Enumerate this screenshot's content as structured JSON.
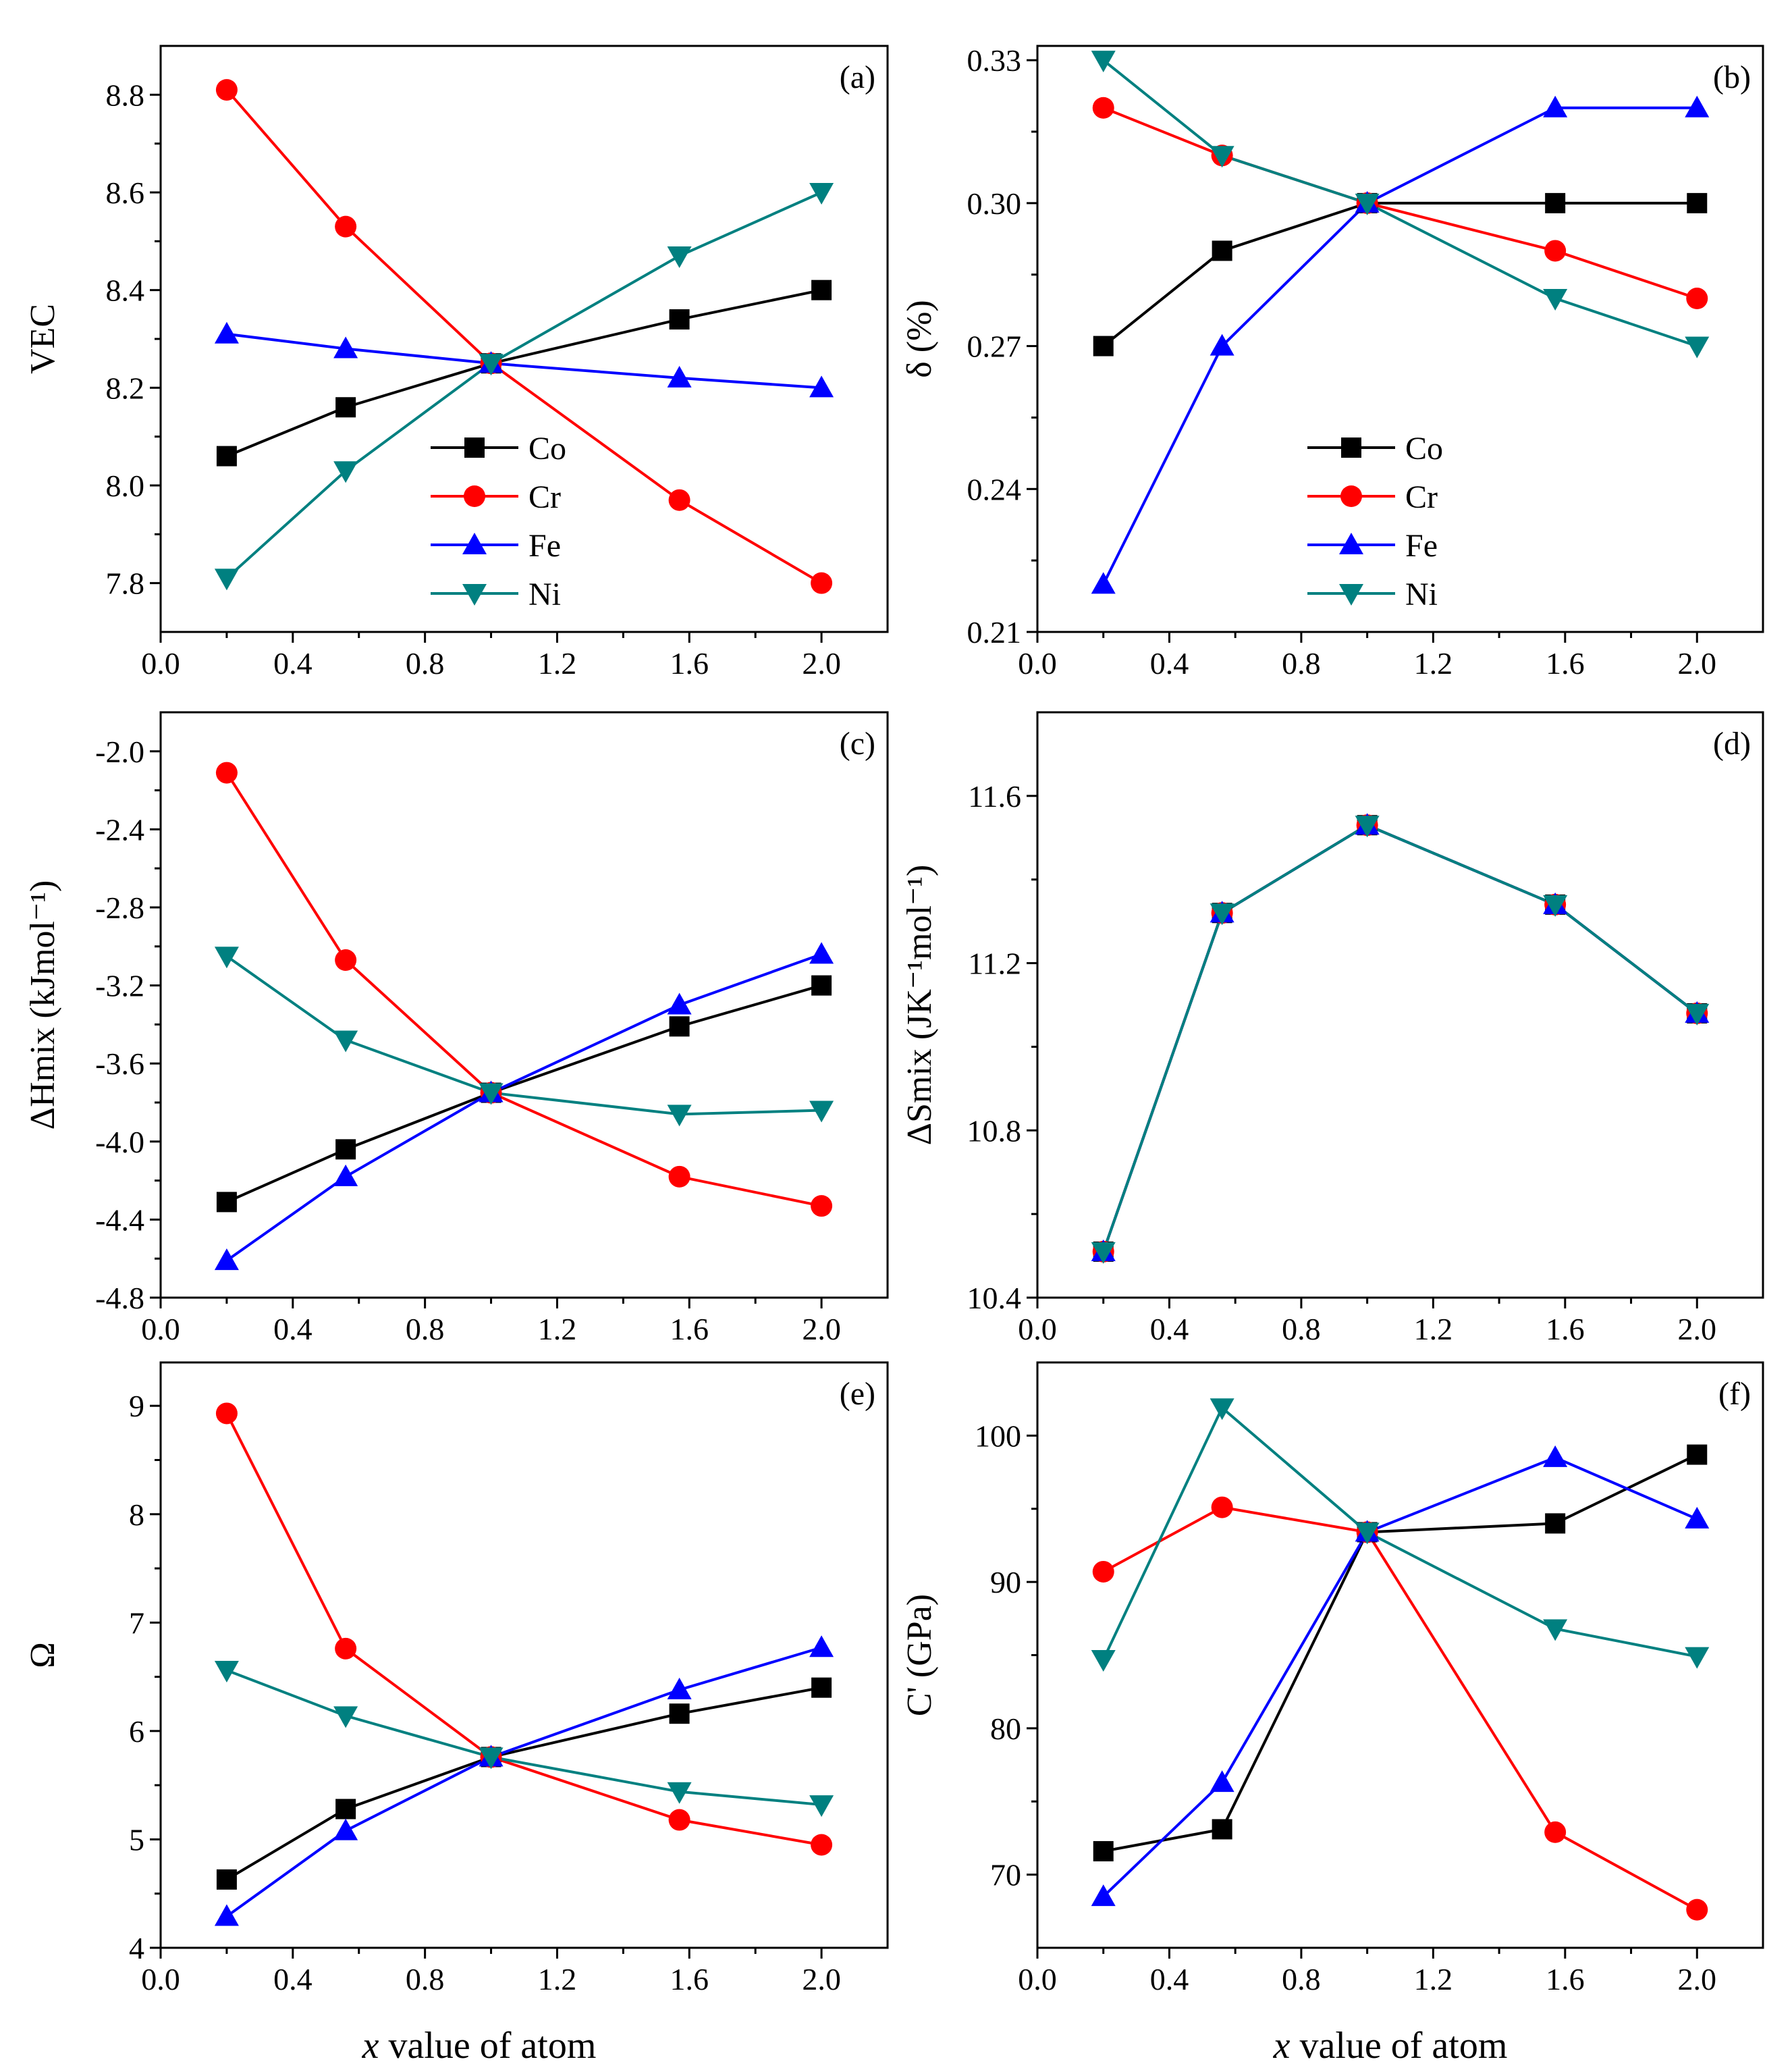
{
  "figure": {
    "xlabel_italic": "x",
    "xlabel_rest": " value of atom"
  },
  "colors": {
    "Co": "#000000",
    "Cr": "#ff0000",
    "Fe": "#0000ff",
    "Ni": "#008080"
  },
  "markers": {
    "Co": "square",
    "Cr": "circle",
    "Fe": "triangle-up",
    "Ni": "triangle-down"
  },
  "chart_data": [
    {
      "type": "line",
      "panel": "(a)",
      "ylabel": "VEC",
      "x": [
        0.2,
        0.56,
        1.0,
        1.57,
        2.0
      ],
      "xlim": [
        0.0,
        2.2
      ],
      "xticks": [
        "0.0",
        "0.4",
        "0.8",
        "1.2",
        "1.6",
        "2.0"
      ],
      "ylim": [
        7.7,
        8.9
      ],
      "yticks": [
        "7.8",
        "8.0",
        "8.2",
        "8.4",
        "8.6",
        "8.8"
      ],
      "legend": "lower-middle",
      "series": [
        {
          "name": "Co",
          "values": [
            8.06,
            8.16,
            8.25,
            8.34,
            8.4
          ]
        },
        {
          "name": "Cr",
          "values": [
            8.81,
            8.53,
            8.25,
            7.97,
            7.8
          ]
        },
        {
          "name": "Fe",
          "values": [
            8.31,
            8.28,
            8.25,
            8.22,
            8.2
          ]
        },
        {
          "name": "Ni",
          "values": [
            7.81,
            8.03,
            8.25,
            8.47,
            8.6
          ]
        }
      ]
    },
    {
      "type": "line",
      "panel": "(b)",
      "ylabel": "δ (%)",
      "x": [
        0.2,
        0.56,
        1.0,
        1.57,
        2.0
      ],
      "xlim": [
        0.0,
        2.2
      ],
      "xticks": [
        "0.0",
        "0.4",
        "0.8",
        "1.2",
        "1.6",
        "2.0"
      ],
      "ylim": [
        0.21,
        0.333
      ],
      "yticks": [
        "0.21",
        "0.24",
        "0.27",
        "0.30",
        "0.33"
      ],
      "legend": "lower-middle",
      "series": [
        {
          "name": "Co",
          "values": [
            0.27,
            0.29,
            0.3,
            0.3,
            0.3
          ]
        },
        {
          "name": "Cr",
          "values": [
            0.32,
            0.31,
            0.3,
            0.29,
            0.28
          ]
        },
        {
          "name": "Fe",
          "values": [
            0.22,
            0.27,
            0.3,
            0.32,
            0.32
          ]
        },
        {
          "name": "Ni",
          "values": [
            0.33,
            0.31,
            0.3,
            0.28,
            0.27
          ]
        }
      ]
    },
    {
      "type": "line",
      "panel": "(c)",
      "ylabel": "ΔHmix (kJmol⁻¹)",
      "x": [
        0.2,
        0.56,
        1.0,
        1.57,
        2.0
      ],
      "xlim": [
        0.0,
        2.2
      ],
      "xticks": [
        "0.0",
        "0.4",
        "0.8",
        "1.2",
        "1.6",
        "2.0"
      ],
      "ylim": [
        -4.8,
        -1.8
      ],
      "yticks": [
        "-4.8",
        "-4.4",
        "-4.0",
        "-3.6",
        "-3.2",
        "-2.8",
        "-2.4",
        "-2.0"
      ],
      "series": [
        {
          "name": "Co",
          "values": [
            -4.31,
            -4.04,
            -3.75,
            -3.41,
            -3.2
          ]
        },
        {
          "name": "Cr",
          "values": [
            -2.11,
            -3.07,
            -3.75,
            -4.18,
            -4.33
          ]
        },
        {
          "name": "Fe",
          "values": [
            -4.61,
            -4.18,
            -3.75,
            -3.3,
            -3.04
          ]
        },
        {
          "name": "Ni",
          "values": [
            -3.05,
            -3.48,
            -3.75,
            -3.86,
            -3.84
          ]
        }
      ]
    },
    {
      "type": "line",
      "panel": "(d)",
      "ylabel": "ΔSmix (JK⁻¹mol⁻¹)",
      "x": [
        0.2,
        0.56,
        1.0,
        1.57,
        2.0
      ],
      "xlim": [
        0.0,
        2.2
      ],
      "xticks": [
        "0.0",
        "0.4",
        "0.8",
        "1.2",
        "1.6",
        "2.0"
      ],
      "ylim": [
        10.4,
        11.8
      ],
      "yticks": [
        "10.4",
        "10.8",
        "11.2",
        "11.6"
      ],
      "series": [
        {
          "name": "Co",
          "values": [
            10.51,
            11.32,
            11.53,
            11.34,
            11.08
          ]
        },
        {
          "name": "Cr",
          "values": [
            10.51,
            11.32,
            11.53,
            11.34,
            11.08
          ]
        },
        {
          "name": "Fe",
          "values": [
            10.51,
            11.32,
            11.53,
            11.34,
            11.08
          ]
        },
        {
          "name": "Ni",
          "values": [
            10.51,
            11.32,
            11.53,
            11.34,
            11.08
          ]
        }
      ]
    },
    {
      "type": "line",
      "panel": "(e)",
      "ylabel": "Ω",
      "x": [
        0.2,
        0.56,
        1.0,
        1.57,
        2.0
      ],
      "xlim": [
        0.0,
        2.2
      ],
      "xticks": [
        "0.0",
        "0.4",
        "0.8",
        "1.2",
        "1.6",
        "2.0"
      ],
      "ylim": [
        4.0,
        9.4
      ],
      "yticks": [
        "4",
        "5",
        "6",
        "7",
        "8",
        "9"
      ],
      "series": [
        {
          "name": "Co",
          "values": [
            4.63,
            5.28,
            5.76,
            6.16,
            6.4
          ]
        },
        {
          "name": "Cr",
          "values": [
            8.93,
            6.76,
            5.76,
            5.18,
            4.95
          ]
        },
        {
          "name": "Fe",
          "values": [
            4.29,
            5.08,
            5.76,
            6.38,
            6.77
          ]
        },
        {
          "name": "Ni",
          "values": [
            6.56,
            6.14,
            5.76,
            5.44,
            5.32
          ]
        }
      ]
    },
    {
      "type": "line",
      "panel": "(f)",
      "ylabel": "C' (GPa)",
      "x": [
        0.2,
        0.56,
        1.0,
        1.57,
        2.0
      ],
      "xlim": [
        0.0,
        2.2
      ],
      "xticks": [
        "0.0",
        "0.4",
        "0.8",
        "1.2",
        "1.6",
        "2.0"
      ],
      "ylim": [
        65.0,
        105.0
      ],
      "yticks": [
        "70",
        "80",
        "90",
        "100"
      ],
      "series": [
        {
          "name": "Co",
          "values": [
            71.6,
            73.1,
            93.4,
            94.0,
            98.7
          ]
        },
        {
          "name": "Cr",
          "values": [
            90.7,
            95.1,
            93.4,
            72.9,
            67.6
          ]
        },
        {
          "name": "Fe",
          "values": [
            68.5,
            76.3,
            93.4,
            98.5,
            94.3
          ]
        },
        {
          "name": "Ni",
          "values": [
            84.7,
            101.9,
            93.4,
            86.8,
            84.9
          ]
        }
      ]
    }
  ]
}
